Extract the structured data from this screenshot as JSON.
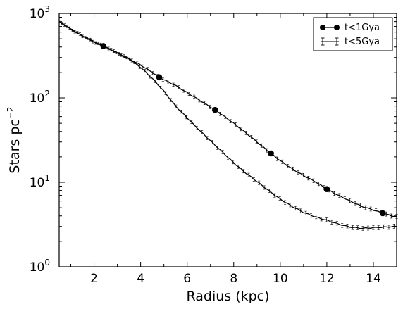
{
  "chart_data": {
    "type": "line",
    "xlabel": "Radius (kpc)",
    "ylabel": "Stars pc",
    "ylabel_exponent": "−2",
    "xlim": [
      0.5,
      15
    ],
    "ylim": [
      1,
      1000
    ],
    "yscale": "log",
    "x_ticks": [
      2,
      4,
      6,
      8,
      10,
      12,
      14
    ],
    "x_tick_labels": [
      "2",
      "4",
      "6",
      "8",
      "10",
      "12",
      "14"
    ],
    "y_ticks": [
      1,
      10,
      100,
      1000
    ],
    "y_tick_base": "10",
    "y_tick_exponents": [
      "0",
      "1",
      "2",
      "3"
    ],
    "legend_position": "top-right",
    "grid": false,
    "series": [
      {
        "name": "t<1Gya",
        "style": "solid line with filled circle markers and error bars",
        "color": "#000000",
        "x": [
          0.5,
          1.0,
          1.5,
          2.0,
          2.4,
          3.0,
          3.5,
          4.0,
          4.5,
          4.8,
          5.5,
          6.0,
          6.5,
          7.2,
          7.5,
          8.0,
          8.5,
          9.0,
          9.6,
          10.0,
          10.5,
          11.0,
          11.5,
          12.0,
          12.5,
          13.0,
          13.5,
          14.0,
          14.4,
          14.8,
          15.0
        ],
        "y": [
          800,
          650,
          540,
          460,
          410,
          340,
          290,
          245,
          200,
          175,
          140,
          115,
          95,
          72,
          63,
          50,
          39,
          30,
          22,
          18,
          14.5,
          12,
          10.2,
          8.3,
          7.0,
          6.0,
          5.2,
          4.7,
          4.3,
          4.0,
          3.9
        ],
        "markers_at": [
          2.4,
          4.8,
          7.2,
          9.6,
          12.0,
          14.4
        ]
      },
      {
        "name": "t<5Gya",
        "style": "solid line with dense error bars",
        "color": "#000000",
        "x": [
          0.5,
          1.0,
          1.5,
          2.0,
          2.4,
          3.0,
          3.5,
          4.0,
          4.5,
          5.0,
          5.5,
          6.0,
          6.5,
          7.0,
          7.5,
          8.0,
          8.5,
          9.0,
          9.5,
          10.0,
          10.5,
          11.0,
          11.5,
          12.0,
          12.5,
          13.0,
          13.5,
          14.0,
          14.5,
          15.0
        ],
        "y": [
          800,
          650,
          540,
          460,
          410,
          340,
          290,
          230,
          170,
          120,
          80,
          58,
          42,
          31,
          23,
          17,
          13,
          10.2,
          8.0,
          6.3,
          5.2,
          4.4,
          3.9,
          3.55,
          3.2,
          2.95,
          2.85,
          2.9,
          2.95,
          3.0
        ]
      }
    ]
  }
}
